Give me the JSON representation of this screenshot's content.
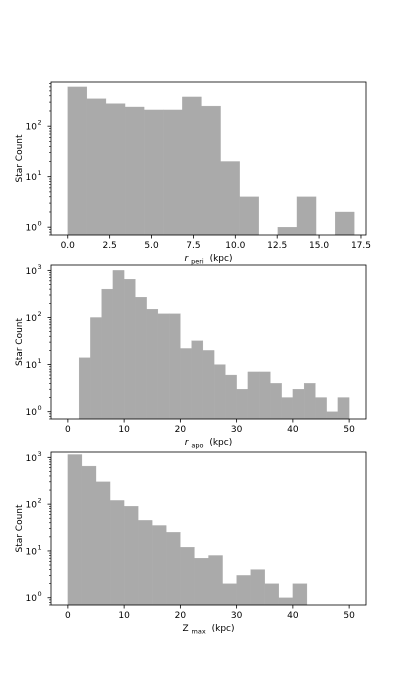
{
  "figure": {
    "background": "#ffffff",
    "bar_color": "#aaaaaa"
  },
  "chart_data": [
    {
      "type": "bar",
      "title": "",
      "xlabel": {
        "symbol": "r",
        "subscript": "peri",
        "unit": "(kpc)"
      },
      "ylabel": "Star Count",
      "y_scale": "log",
      "xlim": [
        -1.0,
        17.8
      ],
      "ylim": [
        0.7,
        750
      ],
      "xticks": [
        {
          "value": 0.0,
          "label": "0.0"
        },
        {
          "value": 2.5,
          "label": "2.5"
        },
        {
          "value": 5.0,
          "label": "5.0"
        },
        {
          "value": 7.5,
          "label": "7.5"
        },
        {
          "value": 10.0,
          "label": "10.0"
        },
        {
          "value": 12.5,
          "label": "12.5"
        },
        {
          "value": 15.0,
          "label": "15.0"
        },
        {
          "value": 17.5,
          "label": "17.5"
        }
      ],
      "yticks": [
        {
          "value": 1,
          "base": "10",
          "exp": "0"
        },
        {
          "value": 10,
          "base": "10",
          "exp": "1"
        },
        {
          "value": 100,
          "base": "10",
          "exp": "2"
        }
      ],
      "bin_edges": [
        0.0,
        1.14,
        2.28,
        3.42,
        4.56,
        5.7,
        6.84,
        7.98,
        9.12,
        10.26,
        11.4,
        12.54,
        13.68,
        14.82,
        15.96,
        17.1
      ],
      "counts": [
        600,
        350,
        280,
        240,
        210,
        210,
        380,
        250,
        20,
        4,
        0,
        1,
        4,
        0,
        2
      ]
    },
    {
      "type": "bar",
      "title": "",
      "xlabel": {
        "symbol": "r",
        "subscript": "apo",
        "unit": "(kpc)"
      },
      "ylabel": "Star Count",
      "y_scale": "log",
      "xlim": [
        -3.0,
        53.0
      ],
      "ylim": [
        0.7,
        1300
      ],
      "xticks": [
        {
          "value": 0,
          "label": "0"
        },
        {
          "value": 10,
          "label": "10"
        },
        {
          "value": 20,
          "label": "20"
        },
        {
          "value": 30,
          "label": "30"
        },
        {
          "value": 40,
          "label": "40"
        },
        {
          "value": 50,
          "label": "50"
        }
      ],
      "yticks": [
        {
          "value": 1,
          "base": "10",
          "exp": "0"
        },
        {
          "value": 10,
          "base": "10",
          "exp": "1"
        },
        {
          "value": 100,
          "base": "10",
          "exp": "2"
        },
        {
          "value": 1000,
          "base": "10",
          "exp": "3"
        }
      ],
      "bin_edges": [
        2.0,
        4.0,
        6.0,
        8.0,
        10.0,
        12.0,
        14.0,
        16.0,
        18.0,
        20.0,
        22.0,
        24.0,
        26.0,
        28.0,
        30.0,
        32.0,
        34.0,
        36.0,
        38.0,
        40.0,
        42.0,
        44.0,
        46.0,
        48.0,
        50.0
      ],
      "counts": [
        14,
        100,
        400,
        1000,
        650,
        270,
        150,
        120,
        120,
        22,
        32,
        20,
        10,
        6,
        3,
        7,
        7,
        4,
        2,
        3,
        4,
        2,
        1,
        2
      ]
    },
    {
      "type": "bar",
      "title": "",
      "xlabel": {
        "symbol": "Z",
        "subscript": "max",
        "unit": "(kpc)"
      },
      "ylabel": "Star Count",
      "y_scale": "log",
      "xlim": [
        -3.0,
        53.0
      ],
      "ylim": [
        0.7,
        1300
      ],
      "xticks": [
        {
          "value": 0,
          "label": "0"
        },
        {
          "value": 10,
          "label": "10"
        },
        {
          "value": 20,
          "label": "20"
        },
        {
          "value": 30,
          "label": "30"
        },
        {
          "value": 40,
          "label": "40"
        },
        {
          "value": 50,
          "label": "50"
        }
      ],
      "yticks": [
        {
          "value": 1,
          "base": "10",
          "exp": "0"
        },
        {
          "value": 10,
          "base": "10",
          "exp": "1"
        },
        {
          "value": 100,
          "base": "10",
          "exp": "2"
        },
        {
          "value": 1000,
          "base": "10",
          "exp": "3"
        }
      ],
      "bin_edges": [
        0.0,
        2.5,
        5.0,
        7.5,
        10.0,
        12.5,
        15.0,
        17.5,
        20.0,
        22.5,
        25.0,
        27.5,
        30.0,
        32.5,
        35.0,
        37.5,
        40.0,
        42.5
      ],
      "counts": [
        1150,
        650,
        300,
        120,
        90,
        45,
        35,
        25,
        12,
        7,
        8,
        2,
        3,
        4,
        2,
        1,
        2
      ]
    }
  ]
}
